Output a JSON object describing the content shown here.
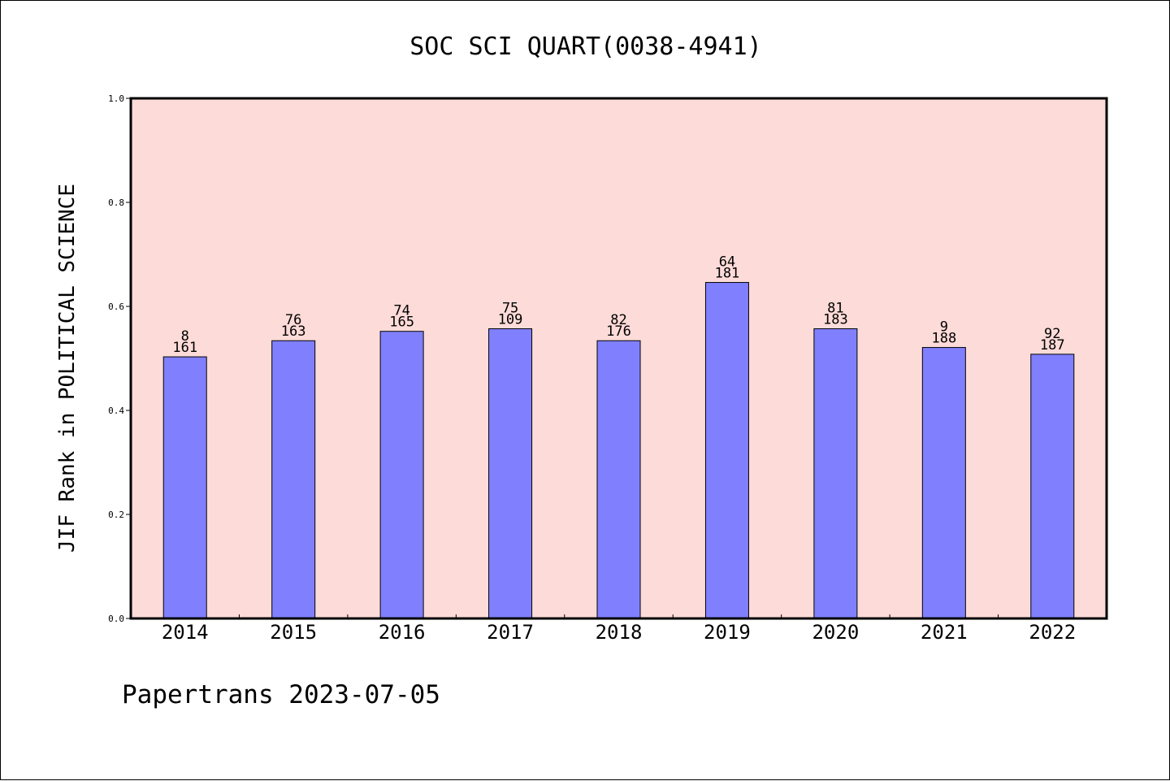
{
  "chart_data": {
    "type": "bar",
    "title": "SOC SCI QUART(0038-4941)",
    "xlabel": "",
    "ylabel": "JIF Rank in POLITICAL SCIENCE",
    "ylim": [
      0.0,
      1.0
    ],
    "yticks": [
      "0.0",
      "0.2",
      "0.4",
      "0.6",
      "0.8",
      "1.0"
    ],
    "categories": [
      "2014",
      "2015",
      "2016",
      "2017",
      "2018",
      "2019",
      "2020",
      "2021",
      "2022"
    ],
    "values": [
      0.503,
      0.534,
      0.552,
      0.557,
      0.534,
      0.646,
      0.557,
      0.521,
      0.508
    ],
    "ranks": [
      "8",
      "76",
      "74",
      "75",
      "82",
      "64",
      "81",
      "9",
      "92"
    ],
    "totals": [
      "161",
      "163",
      "165",
      "109",
      "176",
      "181",
      "183",
      "188",
      "187"
    ],
    "grid": false,
    "legend": "none",
    "colors": {
      "plot_background": "#fddbd8",
      "bar_fill": "#8080ff",
      "bar_edge": "#000000"
    }
  },
  "footer": {
    "text": "Papertrans 2023-07-05"
  }
}
